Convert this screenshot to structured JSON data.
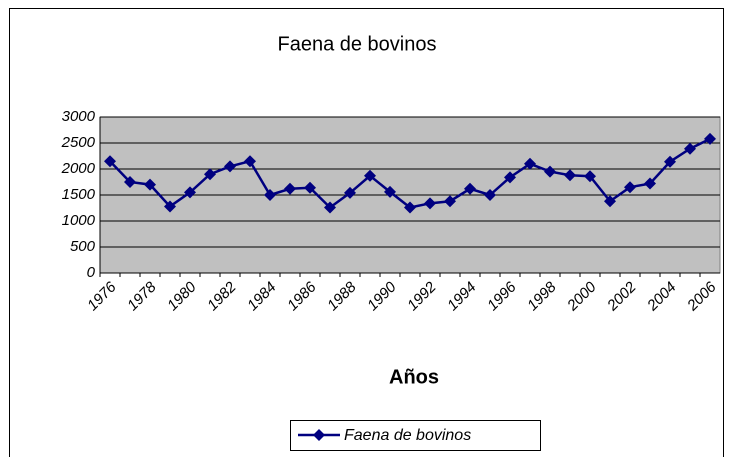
{
  "chart_data": {
    "type": "line",
    "title": "Faena de bovinos",
    "x_label": "Años",
    "categories": [
      "1976",
      null,
      "1978",
      null,
      "1980",
      null,
      "1982",
      null,
      "1984",
      null,
      "1986",
      null,
      "1988",
      null,
      "1990",
      null,
      "1992",
      null,
      "1994",
      null,
      "1996",
      null,
      "1998",
      null,
      "2000",
      null,
      "2002",
      null,
      "2004",
      null,
      "2006"
    ],
    "series": [
      {
        "name": "Faena de bovinos",
        "color": "#000080",
        "values": [
          2150,
          1750,
          1700,
          1280,
          1550,
          1900,
          2050,
          2150,
          1500,
          1620,
          1640,
          1260,
          1540,
          1870,
          1560,
          1260,
          1340,
          1380,
          1620,
          1500,
          1840,
          2100,
          1950,
          1880,
          1860,
          1380,
          1650,
          1720,
          2140,
          2390,
          2580
        ]
      }
    ],
    "ylim": [
      0,
      3000
    ],
    "yticks": [
      0,
      500,
      1000,
      1500,
      2000,
      2500,
      3000
    ],
    "grid": true,
    "legend": "bottom"
  }
}
